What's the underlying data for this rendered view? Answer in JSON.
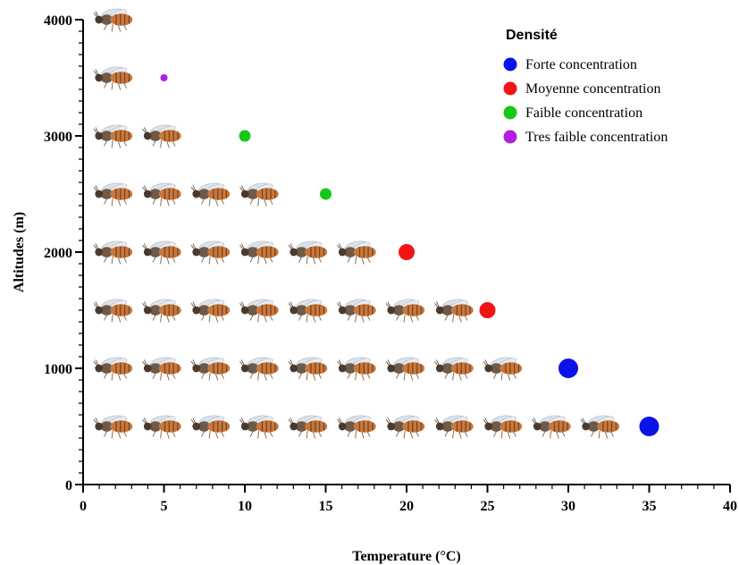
{
  "chart_data": {
    "type": "scatter",
    "xlabel": "Temperature (°C)",
    "ylabel": "Altitudes (m)",
    "xlim": [
      0,
      40
    ],
    "ylim": [
      0,
      4000
    ],
    "x_ticks": [
      0,
      5,
      10,
      15,
      20,
      25,
      30,
      35,
      40
    ],
    "y_ticks": [
      0,
      1000,
      2000,
      3000,
      4000
    ],
    "x_tick_labels": [
      "0",
      "5",
      "10",
      "15",
      "20",
      "25",
      "30",
      "35",
      "40"
    ],
    "y_tick_labels": [
      "0",
      "1000",
      "2000",
      "3000",
      "4000"
    ],
    "grid": false,
    "legend": {
      "title": "Densité",
      "placement": "top-right",
      "entries": [
        {
          "label": "Forte concentration",
          "color": "#0a14e8"
        },
        {
          "label": "Moyenne concentration",
          "color": "#f01414"
        },
        {
          "label": "Faible concentration",
          "color": "#14c814"
        },
        {
          "label": "Tres faible concentration",
          "color": "#b020e0"
        }
      ]
    },
    "series": [
      {
        "name": "Forte concentration",
        "color": "#0a14e8",
        "points": [
          {
            "x": 35,
            "y": 500
          },
          {
            "x": 30,
            "y": 1000
          }
        ]
      },
      {
        "name": "Moyenne concentration",
        "color": "#f01414",
        "points": [
          {
            "x": 25,
            "y": 1500
          },
          {
            "x": 20,
            "y": 2000
          }
        ]
      },
      {
        "name": "Faible concentration",
        "color": "#14c814",
        "points": [
          {
            "x": 15,
            "y": 2500
          },
          {
            "x": 10,
            "y": 3000
          }
        ]
      },
      {
        "name": "Tres faible concentration",
        "color": "#b020e0",
        "points": [
          {
            "x": 5,
            "y": 3500
          }
        ]
      }
    ],
    "insect_icon_rows": [
      {
        "y": 500,
        "count": 11
      },
      {
        "y": 1000,
        "count": 9
      },
      {
        "y": 1500,
        "count": 8
      },
      {
        "y": 2000,
        "count": 6
      },
      {
        "y": 2500,
        "count": 4
      },
      {
        "y": 3000,
        "count": 2
      },
      {
        "y": 3500,
        "count": 1
      },
      {
        "y": 4000,
        "count": 1
      }
    ],
    "icon_name": "bee-icon"
  }
}
